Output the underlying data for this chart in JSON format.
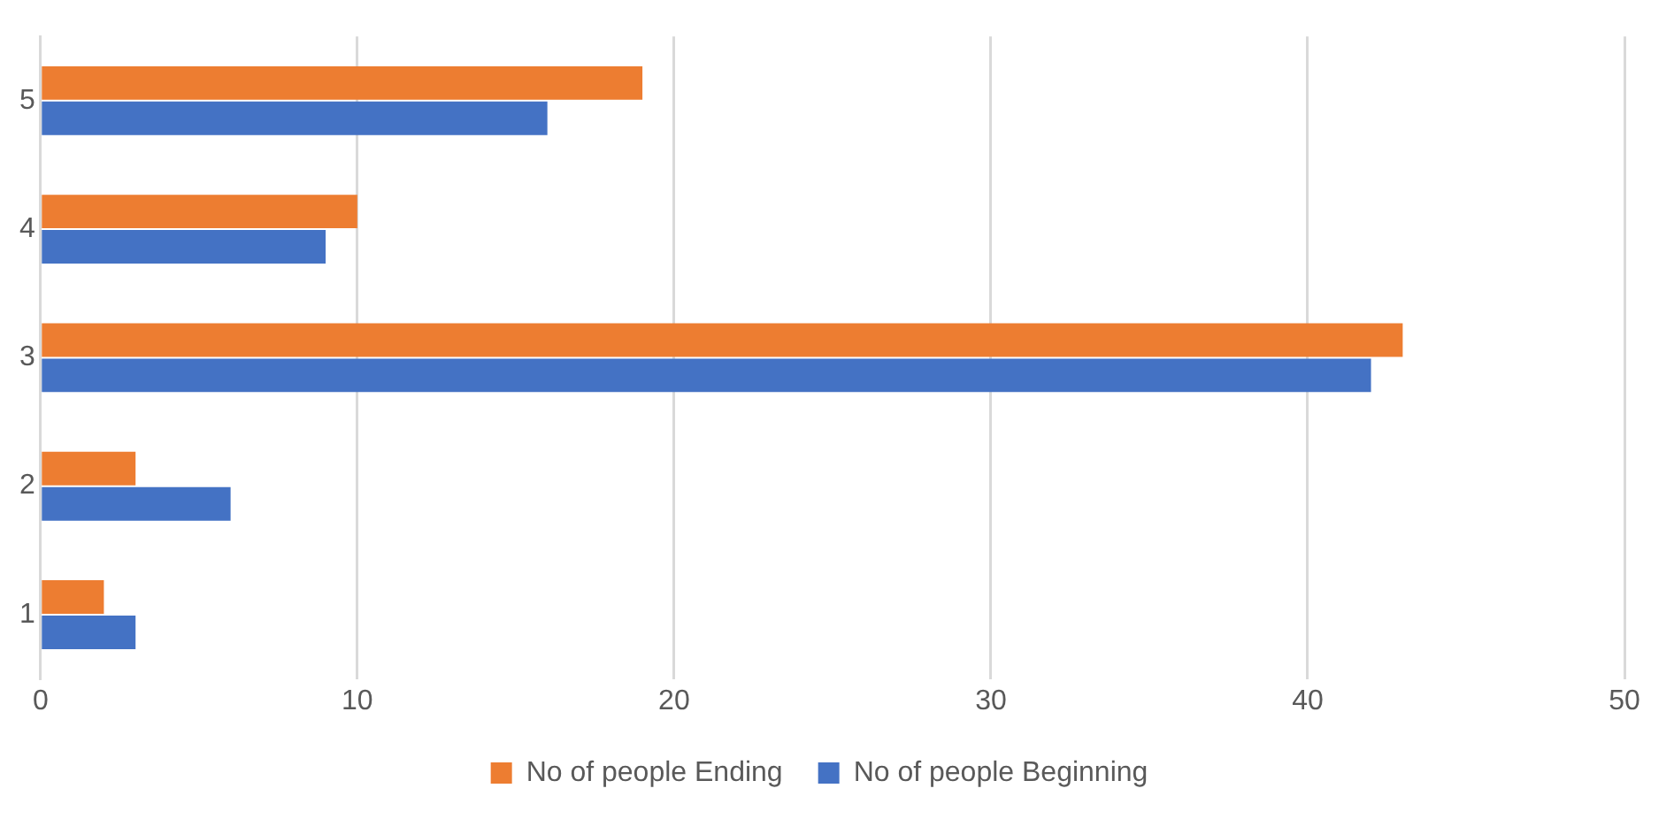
{
  "chart_data": {
    "type": "bar",
    "orientation": "horizontal",
    "categories": [
      "5",
      "4",
      "3",
      "2",
      "1"
    ],
    "series": [
      {
        "name": "No of people Ending",
        "color": "#ed7d31",
        "values": [
          19,
          10,
          43,
          3,
          2
        ]
      },
      {
        "name": "No of people Beginning",
        "color": "#4472c4",
        "values": [
          16,
          9,
          42,
          6,
          3
        ]
      }
    ],
    "xlim": [
      0,
      50
    ],
    "xticks": [
      0,
      10,
      20,
      30,
      40,
      50
    ],
    "grid": "x",
    "legend": "bottom"
  }
}
